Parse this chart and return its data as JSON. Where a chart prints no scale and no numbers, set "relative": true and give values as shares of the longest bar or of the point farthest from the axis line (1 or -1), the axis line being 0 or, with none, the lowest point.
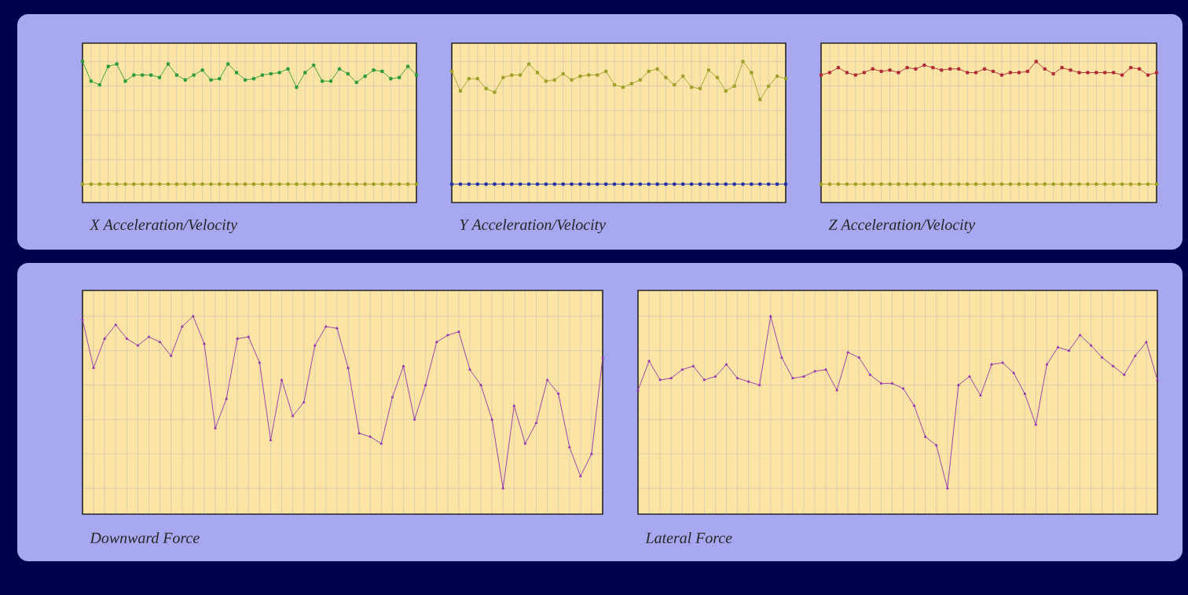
{
  "chart_data": [
    {
      "type": "line",
      "title": "X Acceleration/Velocity",
      "relative": true,
      "grid": true,
      "marker": "square",
      "categories": [
        null,
        null,
        null,
        null,
        null,
        null,
        null,
        null,
        null,
        null,
        null,
        null,
        null,
        null,
        null,
        null,
        null,
        null,
        null,
        null,
        null,
        null,
        null,
        null,
        null,
        null,
        null,
        null,
        null,
        null,
        null,
        null,
        null,
        null,
        null,
        null,
        null,
        null,
        null,
        null
      ],
      "series": [
        {
          "color": "#2a9a3a",
          "values": [
            1.0,
            0.84,
            0.81,
            0.96,
            0.98,
            0.84,
            0.89,
            0.89,
            0.89,
            0.87,
            0.98,
            0.89,
            0.85,
            0.89,
            0.93,
            0.85,
            0.86,
            0.98,
            0.91,
            0.85,
            0.86,
            0.89,
            0.9,
            0.91,
            0.94,
            0.79,
            0.91,
            0.97,
            0.84,
            0.84,
            0.94,
            0.9,
            0.83,
            0.88,
            0.93,
            0.92,
            0.86,
            0.87,
            0.96,
            0.89
          ]
        },
        {
          "color": "#a0a020",
          "values": [
            0,
            0,
            0,
            0,
            0,
            0,
            0,
            0,
            0,
            0,
            0,
            0,
            0,
            0,
            0,
            0,
            0,
            0,
            0,
            0,
            0,
            0,
            0,
            0,
            0,
            0,
            0,
            0,
            0,
            0,
            0,
            0,
            0,
            0,
            0,
            0,
            0,
            0,
            0,
            0
          ]
        }
      ]
    },
    {
      "type": "line",
      "title": "Y Acceleration/Velocity",
      "relative": true,
      "grid": true,
      "marker": "square",
      "categories": [
        null,
        null,
        null,
        null,
        null,
        null,
        null,
        null,
        null,
        null,
        null,
        null,
        null,
        null,
        null,
        null,
        null,
        null,
        null,
        null,
        null,
        null,
        null,
        null,
        null,
        null,
        null,
        null,
        null,
        null,
        null,
        null,
        null,
        null,
        null,
        null,
        null,
        null,
        null,
        null
      ],
      "series": [
        {
          "color": "#9ea028",
          "values": [
            0.92,
            0.76,
            0.86,
            0.86,
            0.78,
            0.75,
            0.87,
            0.89,
            0.89,
            0.98,
            0.91,
            0.84,
            0.85,
            0.9,
            0.85,
            0.88,
            0.89,
            0.89,
            0.92,
            0.81,
            0.79,
            0.82,
            0.85,
            0.92,
            0.94,
            0.87,
            0.81,
            0.88,
            0.79,
            0.78,
            0.93,
            0.87,
            0.76,
            0.8,
            1.0,
            0.91,
            0.69,
            0.8,
            0.88,
            0.86
          ]
        },
        {
          "color": "#2030a8",
          "values": [
            0,
            0,
            0,
            0,
            0,
            0,
            0,
            0,
            0,
            0,
            0,
            0,
            0,
            0,
            0,
            0,
            0,
            0,
            0,
            0,
            0,
            0,
            0,
            0,
            0,
            0,
            0,
            0,
            0,
            0,
            0,
            0,
            0,
            0,
            0,
            0,
            0,
            0,
            0,
            0
          ]
        }
      ]
    },
    {
      "type": "line",
      "title": "Z Acceleration/Velocity",
      "relative": true,
      "grid": true,
      "marker": "square",
      "categories": [
        null,
        null,
        null,
        null,
        null,
        null,
        null,
        null,
        null,
        null,
        null,
        null,
        null,
        null,
        null,
        null,
        null,
        null,
        null,
        null,
        null,
        null,
        null,
        null,
        null,
        null,
        null,
        null,
        null,
        null,
        null,
        null,
        null,
        null,
        null,
        null,
        null,
        null,
        null,
        null
      ],
      "series": [
        {
          "color": "#b02838",
          "values": [
            0.89,
            0.91,
            0.95,
            0.91,
            0.89,
            0.91,
            0.94,
            0.92,
            0.93,
            0.91,
            0.95,
            0.94,
            0.97,
            0.95,
            0.93,
            0.94,
            0.94,
            0.91,
            0.91,
            0.94,
            0.92,
            0.89,
            0.91,
            0.91,
            0.92,
            1.0,
            0.94,
            0.9,
            0.95,
            0.93,
            0.91,
            0.91,
            0.91,
            0.91,
            0.91,
            0.89,
            0.95,
            0.94,
            0.89,
            0.91
          ]
        },
        {
          "color": "#a0a020",
          "values": [
            0,
            0,
            0,
            0,
            0,
            0,
            0,
            0,
            0,
            0,
            0,
            0,
            0,
            0,
            0,
            0,
            0,
            0,
            0,
            0,
            0,
            0,
            0,
            0,
            0,
            0,
            0,
            0,
            0,
            0,
            0,
            0,
            0,
            0,
            0,
            0,
            0,
            0,
            0,
            0
          ]
        }
      ]
    },
    {
      "type": "line",
      "title": "Downward Force",
      "relative": true,
      "grid": true,
      "marker": "triangle",
      "categories": [
        null,
        null,
        null,
        null,
        null,
        null,
        null,
        null,
        null,
        null,
        null,
        null,
        null,
        null,
        null,
        null,
        null,
        null,
        null,
        null,
        null,
        null,
        null,
        null,
        null,
        null,
        null,
        null,
        null,
        null,
        null,
        null,
        null,
        null,
        null,
        null,
        null,
        null,
        null,
        null,
        null,
        null,
        null,
        null,
        null,
        null,
        null,
        null
      ],
      "series": [
        {
          "color": "#9030b0",
          "values": [
            0.98,
            0.7,
            0.87,
            0.95,
            0.87,
            0.83,
            0.88,
            0.85,
            0.77,
            0.94,
            1.0,
            0.84,
            0.35,
            0.52,
            0.87,
            0.88,
            0.73,
            0.28,
            0.63,
            0.42,
            0.5,
            0.83,
            0.94,
            0.93,
            0.7,
            0.32,
            0.3,
            0.26,
            0.53,
            0.71,
            0.4,
            0.6,
            0.85,
            0.89,
            0.91,
            0.69,
            0.6,
            0.4,
            0,
            0.48,
            0.26,
            0.38,
            0.63,
            0.55,
            0.24,
            0.07,
            0.2,
            0.76
          ]
        }
      ]
    },
    {
      "type": "line",
      "title": "Lateral Force",
      "relative": true,
      "grid": true,
      "marker": "triangle",
      "categories": [
        null,
        null,
        null,
        null,
        null,
        null,
        null,
        null,
        null,
        null,
        null,
        null,
        null,
        null,
        null,
        null,
        null,
        null,
        null,
        null,
        null,
        null,
        null,
        null,
        null,
        null,
        null,
        null,
        null,
        null,
        null,
        null,
        null,
        null,
        null,
        null,
        null,
        null,
        null,
        null,
        null,
        null,
        null,
        null,
        null,
        null,
        null,
        null
      ],
      "series": [
        {
          "color": "#9030b0",
          "values": [
            0.57,
            0.74,
            0.63,
            0.64,
            0.69,
            0.71,
            0.63,
            0.65,
            0.72,
            0.64,
            0.62,
            0.6,
            1.0,
            0.76,
            0.64,
            0.65,
            0.68,
            0.69,
            0.57,
            0.79,
            0.76,
            0.66,
            0.61,
            0.61,
            0.58,
            0.48,
            0.3,
            0.25,
            0,
            0.6,
            0.65,
            0.54,
            0.72,
            0.73,
            0.67,
            0.55,
            0.37,
            0.72,
            0.82,
            0.8,
            0.89,
            0.83,
            0.76,
            0.71,
            0.66,
            0.77,
            0.85,
            0.63
          ]
        }
      ]
    }
  ]
}
